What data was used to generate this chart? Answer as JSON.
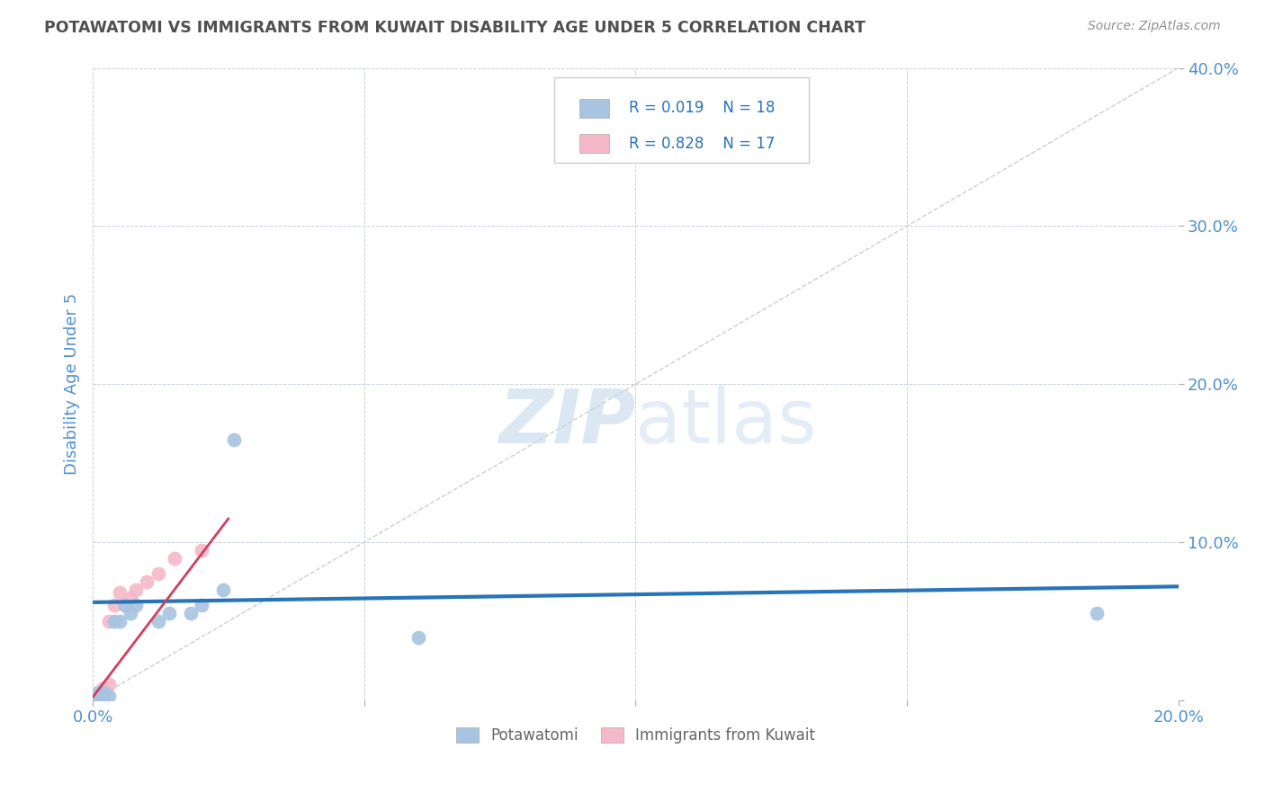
{
  "title": "POTAWATOMI VS IMMIGRANTS FROM KUWAIT DISABILITY AGE UNDER 5 CORRELATION CHART",
  "source": "Source: ZipAtlas.com",
  "ylabel": "Disability Age Under 5",
  "xlim": [
    0.0,
    0.2
  ],
  "ylim": [
    0.0,
    0.4
  ],
  "xticks": [
    0.0,
    0.05,
    0.1,
    0.15,
    0.2
  ],
  "yticks": [
    0.0,
    0.1,
    0.2,
    0.3,
    0.4
  ],
  "blue_scatter_x": [
    0.001,
    0.001,
    0.002,
    0.002,
    0.003,
    0.004,
    0.005,
    0.006,
    0.007,
    0.008,
    0.012,
    0.014,
    0.018,
    0.02,
    0.024,
    0.026,
    0.06,
    0.185
  ],
  "blue_scatter_y": [
    0.0,
    0.005,
    0.0,
    0.005,
    0.003,
    0.05,
    0.05,
    0.06,
    0.055,
    0.06,
    0.05,
    0.055,
    0.055,
    0.06,
    0.07,
    0.165,
    0.04,
    0.055
  ],
  "pink_scatter_x": [
    0.0,
    0.0,
    0.001,
    0.001,
    0.002,
    0.002,
    0.003,
    0.003,
    0.004,
    0.005,
    0.006,
    0.007,
    0.008,
    0.01,
    0.012,
    0.015,
    0.02
  ],
  "pink_scatter_y": [
    0.0,
    0.002,
    0.002,
    0.004,
    0.004,
    0.008,
    0.01,
    0.05,
    0.06,
    0.068,
    0.06,
    0.065,
    0.07,
    0.075,
    0.08,
    0.09,
    0.095
  ],
  "blue_color": "#a8c4e0",
  "pink_color": "#f4b8c8",
  "blue_line_color": "#2874b8",
  "pink_line_color": "#d04060",
  "diag_line_color": "#c8c8c8",
  "R_blue": 0.019,
  "N_blue": 18,
  "R_pink": 0.828,
  "N_pink": 17,
  "legend_label_blue": "Potawatomi",
  "legend_label_pink": "Immigrants from Kuwait",
  "watermark_zip": "ZIP",
  "watermark_atlas": "atlas",
  "background_color": "#ffffff",
  "grid_color": "#c8d0dc",
  "title_color": "#505050",
  "axis_label_color": "#5090d0",
  "tick_label_color": "#5090d0",
  "source_color": "#909090"
}
